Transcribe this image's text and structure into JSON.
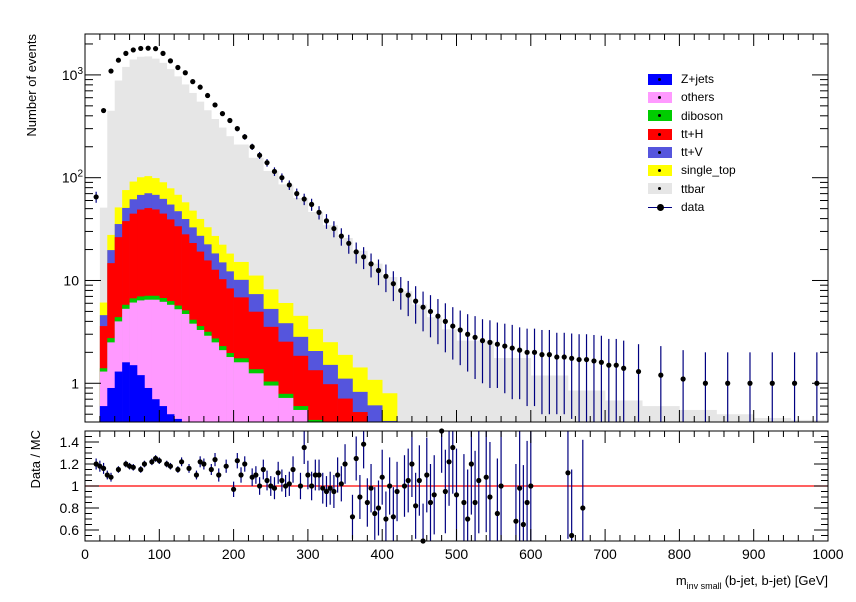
{
  "chart_data": {
    "type": "histogram-stacked",
    "main": {
      "ylabel": "Number of events",
      "yscale": "log",
      "ylim": [
        0.42,
        2500
      ],
      "y_ticks": [
        1,
        10,
        100,
        1000
      ],
      "y_tick_labels": [
        "1",
        "10",
        "10^2",
        "10^3"
      ]
    },
    "ratio": {
      "ylabel": "Data / MC",
      "ylim": [
        0.5,
        1.5
      ],
      "y_ticks": [
        0.6,
        0.8,
        1.0,
        1.2,
        1.4
      ],
      "y_tick_labels": [
        "0.6",
        "0.8",
        "1",
        "1.2",
        "1.4"
      ],
      "reference_line": 1.0
    },
    "x": {
      "label_main": "m",
      "label_sub": "inv_small",
      "label_rest": "(b-jet, b-jet) [GeV]",
      "xlim": [
        0,
        1000
      ],
      "ticks": [
        0,
        100,
        200,
        300,
        400,
        500,
        600,
        700,
        800,
        900,
        1000
      ],
      "tick_labels": [
        "0",
        "100",
        "200",
        "300",
        "400",
        "500",
        "600",
        "700",
        "800",
        "900",
        "1000"
      ]
    },
    "legend": {
      "position": "top-right",
      "entries": [
        {
          "name": "Z+jets",
          "color": "#0000ff",
          "style": "fill"
        },
        {
          "name": "others",
          "color": "#ff99ff",
          "style": "fill"
        },
        {
          "name": "diboson",
          "color": "#00cc00",
          "style": "fill"
        },
        {
          "name": "tt+H",
          "color": "#ff0000",
          "style": "fill"
        },
        {
          "name": "tt+V",
          "color": "#5555dd",
          "style": "fill"
        },
        {
          "name": "single_top",
          "color": "#ffff00",
          "style": "fill"
        },
        {
          "name": "ttbar",
          "color": "#e6e6e6",
          "style": "fill"
        },
        {
          "name": "data",
          "color": "#000000",
          "style": "marker"
        }
      ]
    },
    "stack_bins": {
      "x": [
        20,
        30,
        40,
        50,
        60,
        70,
        80,
        90,
        100,
        110,
        120,
        130,
        140,
        150,
        160,
        170,
        180,
        190,
        200,
        220,
        240,
        260,
        280,
        300,
        320,
        340,
        360,
        380,
        400,
        420,
        440,
        460,
        480,
        500,
        550,
        600,
        650,
        700,
        750,
        800,
        850,
        900,
        950,
        1000
      ],
      "series": [
        {
          "name": "Z+jets",
          "values": [
            0.6,
            0.9,
            1.3,
            1.6,
            1.5,
            1.2,
            0.9,
            0.7,
            0.6,
            0.5,
            0.45,
            0.42,
            0,
            0,
            0,
            0,
            0,
            0,
            0,
            0,
            0,
            0,
            0,
            0,
            0,
            0,
            0,
            0,
            0,
            0,
            0,
            0,
            0,
            0,
            0,
            0,
            0,
            0,
            0,
            0,
            0,
            0,
            0,
            0
          ]
        },
        {
          "name": "others",
          "values": [
            0.7,
            1.6,
            2.7,
            3.7,
            4.6,
            5.2,
            5.6,
            5.8,
            5.6,
            5.3,
            4.8,
            4.3,
            3.8,
            3.3,
            2.9,
            2.5,
            2.1,
            1.8,
            1.6,
            1.25,
            0.95,
            0.72,
            0.55,
            0.4,
            0.3,
            0.22,
            0.16,
            0.12,
            0.09,
            0,
            0,
            0,
            0,
            0,
            0,
            0,
            0,
            0,
            0,
            0,
            0,
            0,
            0,
            0
          ]
        },
        {
          "name": "diboson",
          "values": [
            0.1,
            0.25,
            0.4,
            0.5,
            0.6,
            0.6,
            0.6,
            0.6,
            0.55,
            0.5,
            0.45,
            0.4,
            0.35,
            0.3,
            0.27,
            0.23,
            0.2,
            0.17,
            0.15,
            0.12,
            0.09,
            0.07,
            0.05,
            0.04,
            0.03,
            0.02,
            0.015,
            0.01,
            0.01,
            0,
            0,
            0,
            0,
            0,
            0,
            0,
            0,
            0,
            0,
            0,
            0,
            0,
            0,
            0
          ]
        },
        {
          "name": "tt+H",
          "values": [
            2.2,
            12,
            22,
            32,
            38,
            42,
            43.5,
            42,
            38,
            33,
            28,
            23,
            19,
            15.5,
            12.5,
            10,
            8,
            6.4,
            5.1,
            3.6,
            2.5,
            1.75,
            1.25,
            0.9,
            0.65,
            0.47,
            0.35,
            0.26,
            0.18,
            0,
            0,
            0,
            0,
            0,
            0,
            0,
            0,
            0,
            0,
            0,
            0,
            0,
            0,
            0
          ]
        },
        {
          "name": "tt+V",
          "values": [
            1.0,
            5,
            9,
            13,
            17,
            19,
            20,
            19,
            17.5,
            15.5,
            13.5,
            11.5,
            9.7,
            8.1,
            6.8,
            5.6,
            4.7,
            3.9,
            3.3,
            2.4,
            1.75,
            1.3,
            0.98,
            0.72,
            0.53,
            0.4,
            0.3,
            0.22,
            0.15,
            0.05,
            0,
            0,
            0,
            0,
            0,
            0,
            0,
            0,
            0,
            0,
            0,
            0,
            0,
            0
          ]
        },
        {
          "name": "single_top",
          "values": [
            1.5,
            8,
            16,
            25,
            30,
            33,
            33,
            31,
            28,
            24,
            21,
            18,
            15,
            12.5,
            10.5,
            8.8,
            7.3,
            6.0,
            5.0,
            3.8,
            2.9,
            2.2,
            1.7,
            1.3,
            1.0,
            0.78,
            0.6,
            0.47,
            0.37,
            0.3,
            0.24,
            0.19,
            0.15,
            0.1,
            0.06,
            0.04,
            0,
            0,
            0,
            0,
            0,
            0,
            0,
            0
          ]
        },
        {
          "name": "ttbar",
          "values": [
            45,
            420,
            830,
            1120,
            1320,
            1400,
            1410,
            1340,
            1220,
            1060,
            900,
            750,
            620,
            510,
            420,
            345,
            285,
            235,
            195,
            145,
            108,
            80,
            59,
            43,
            32,
            24,
            18,
            13.5,
            10,
            7.5,
            5.6,
            4.2,
            3.2,
            2.5,
            1.7,
            1.15,
            0.85,
            0.68,
            0.6,
            0.55,
            0.5,
            0.46,
            0.44,
            0.43
          ]
        }
      ]
    },
    "data_points": {
      "x": [
        15,
        25,
        35,
        45,
        55,
        65,
        75,
        85,
        95,
        105,
        115,
        125,
        135,
        145,
        155,
        165,
        175,
        185,
        195,
        205,
        215,
        225,
        235,
        245,
        255,
        265,
        275,
        285,
        295,
        305,
        315,
        325,
        335,
        345,
        355,
        365,
        375,
        385,
        395,
        405,
        415,
        425,
        435,
        445,
        455,
        465,
        475,
        485,
        495,
        505,
        515,
        525,
        535,
        545,
        555,
        565,
        575,
        585,
        595,
        605,
        615,
        625,
        635,
        645,
        655,
        665,
        675,
        685,
        695,
        705,
        715,
        725,
        745,
        775,
        805,
        835,
        865,
        895,
        925,
        955,
        985
      ],
      "y": [
        65,
        450,
        1090,
        1390,
        1620,
        1750,
        1810,
        1820,
        1800,
        1620,
        1370,
        1180,
        1050,
        860,
        760,
        630,
        510,
        420,
        360,
        300,
        250,
        200,
        165,
        140,
        115,
        100,
        85,
        70,
        62,
        55,
        46,
        38,
        32,
        27,
        23,
        19,
        17,
        14.5,
        12.5,
        11,
        9.3,
        8,
        7.2,
        6.3,
        5.5,
        5.0,
        4.5,
        4.0,
        3.6,
        3.3,
        3.0,
        2.8,
        2.6,
        2.5,
        2.4,
        2.3,
        2.2,
        2.1,
        2.0,
        2.0,
        1.9,
        1.9,
        1.8,
        1.8,
        1.75,
        1.7,
        1.7,
        1.65,
        1.6,
        1.5,
        1.5,
        1.4,
        1.3,
        1.2,
        1.1,
        1.0,
        1.0,
        1.0,
        1.0,
        1.0,
        1.0
      ],
      "err": [
        8,
        21,
        33,
        37,
        40,
        42,
        43,
        43,
        42,
        40,
        37,
        34,
        32,
        29,
        28,
        25,
        23,
        21,
        19,
        17,
        16,
        14,
        13,
        12,
        11,
        10,
        9,
        8.4,
        7.9,
        7.4,
        6.8,
        6.2,
        5.7,
        5.2,
        4.8,
        4.4,
        4.1,
        3.8,
        3.5,
        3.3,
        3.0,
        2.8,
        2.7,
        2.5,
        2.3,
        2.2,
        2.1,
        2.0,
        1.9,
        1.8,
        1.7,
        1.7,
        1.6,
        1.6,
        1.5,
        1.5,
        1.5,
        1.4,
        1.4,
        1.4,
        1.4,
        1.4,
        1.3,
        1.3,
        1.3,
        1.3,
        1.3,
        1.3,
        1.3,
        1.2,
        1.2,
        1.2,
        1.1,
        1.1,
        1.0,
        1.0,
        1.0,
        1.0,
        1.0,
        1.0,
        1.0
      ]
    },
    "ratio_points": {
      "x": [
        15,
        20,
        25,
        30,
        35,
        45,
        55,
        60,
        65,
        75,
        80,
        90,
        95,
        100,
        110,
        115,
        125,
        130,
        140,
        150,
        155,
        160,
        170,
        175,
        180,
        190,
        200,
        205,
        210,
        215,
        225,
        230,
        235,
        240,
        245,
        250,
        255,
        260,
        265,
        270,
        275,
        280,
        290,
        295,
        300,
        305,
        310,
        315,
        320,
        325,
        330,
        335,
        340,
        345,
        350,
        360,
        365,
        370,
        375,
        380,
        385,
        390,
        395,
        400,
        405,
        410,
        415,
        420,
        430,
        435,
        440,
        445,
        450,
        455,
        460,
        465,
        470,
        480,
        485,
        490,
        495,
        500,
        510,
        515,
        520,
        525,
        530,
        540,
        545,
        555,
        560,
        580,
        585,
        590,
        595,
        600,
        650,
        655,
        670
      ],
      "y": [
        1.2,
        1.18,
        1.16,
        1.1,
        1.08,
        1.15,
        1.2,
        1.18,
        1.17,
        1.15,
        1.2,
        1.22,
        1.25,
        1.23,
        1.2,
        1.18,
        1.15,
        1.22,
        1.16,
        1.1,
        1.22,
        1.2,
        1.15,
        1.24,
        1.1,
        1.18,
        0.97,
        1.23,
        1.1,
        1.2,
        1.08,
        1.1,
        1.0,
        1.15,
        1.05,
        1.0,
        0.98,
        1.12,
        1.05,
        1.0,
        1.02,
        1.15,
        1.0,
        1.35,
        1.1,
        1.0,
        1.1,
        1.1,
        0.98,
        0.95,
        0.98,
        0.95,
        1.1,
        1.02,
        1.2,
        0.72,
        1.25,
        0.9,
        1.38,
        0.85,
        0.98,
        0.75,
        0.8,
        1.08,
        0.7,
        1.0,
        0.72,
        0.95,
        1.0,
        1.05,
        1.2,
        0.82,
        1.05,
        0.5,
        1.1,
        0.85,
        0.92,
        1.5,
        0.95,
        1.22,
        1.35,
        0.92,
        0.85,
        0.7,
        1.2,
        0.85,
        1.05,
        1.08,
        0.9,
        0.75,
        1.0,
        0.68,
        0.98,
        0.65,
        0.85,
        1.0,
        1.12,
        0.55,
        0.8
      ],
      "err": [
        0.05,
        0.05,
        0.05,
        0.04,
        0.04,
        0.03,
        0.03,
        0.03,
        0.03,
        0.03,
        0.03,
        0.03,
        0.03,
        0.03,
        0.03,
        0.03,
        0.03,
        0.04,
        0.04,
        0.04,
        0.05,
        0.05,
        0.05,
        0.06,
        0.06,
        0.06,
        0.07,
        0.07,
        0.07,
        0.07,
        0.08,
        0.08,
        0.08,
        0.09,
        0.09,
        0.09,
        0.1,
        0.1,
        0.1,
        0.1,
        0.11,
        0.12,
        0.12,
        0.15,
        0.13,
        0.13,
        0.14,
        0.14,
        0.14,
        0.14,
        0.15,
        0.15,
        0.16,
        0.16,
        0.18,
        0.2,
        0.2,
        0.2,
        0.22,
        0.22,
        0.22,
        0.24,
        0.25,
        0.25,
        0.25,
        0.26,
        0.27,
        0.27,
        0.28,
        0.29,
        0.3,
        0.3,
        0.32,
        0.34,
        0.34,
        0.35,
        0.36,
        0.38,
        0.38,
        0.4,
        0.42,
        0.42,
        0.44,
        0.45,
        0.46,
        0.47,
        0.48,
        0.5,
        0.5,
        0.5,
        0.52,
        0.52,
        0.54,
        0.54,
        0.56,
        0.58,
        0.6,
        0.6,
        0.62
      ]
    }
  }
}
